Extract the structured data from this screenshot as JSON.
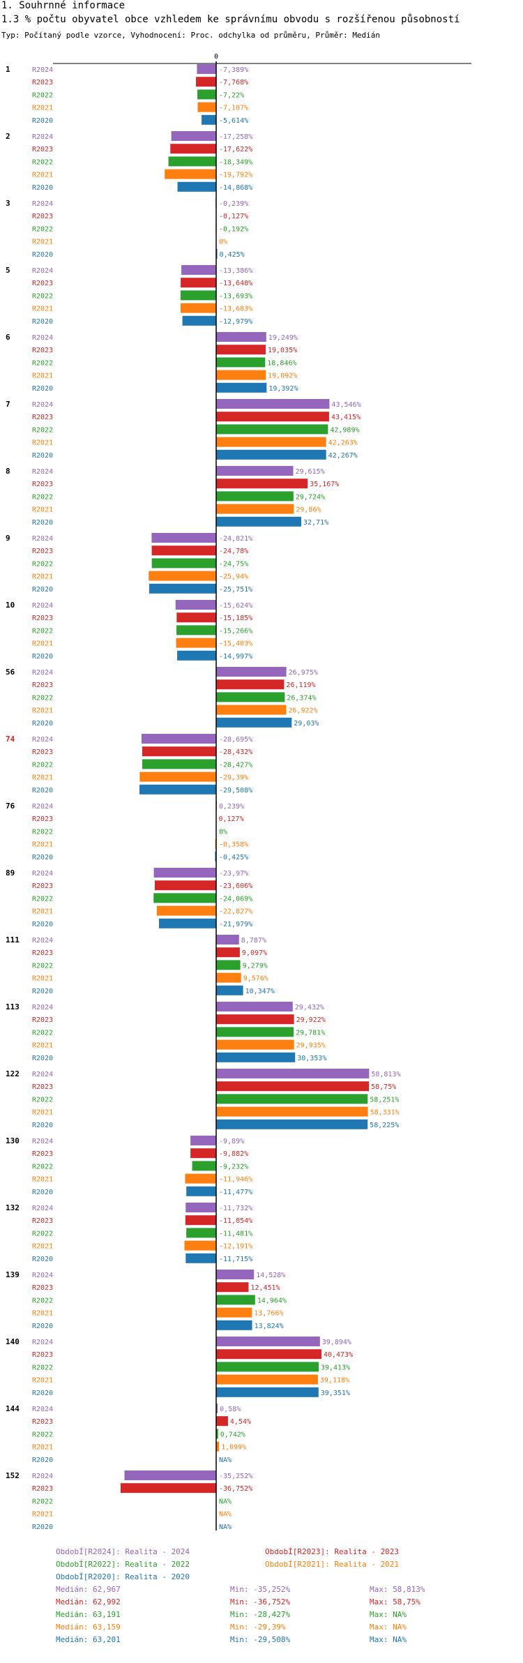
{
  "header": {
    "section": "1. Souhrnné informace",
    "title": "1.3 % počtu obyvatel obce vzhledem ke správnímu obvodu s rozšířenou působností",
    "subtitle": "Typ: Počítaný podle vzorce, Vyhodnocení: Proc. odchylka od průměru, Průměr: Medián"
  },
  "chart_data": {
    "type": "bar",
    "orientation": "horizontal",
    "zero_label": "0",
    "series_names": [
      "R2024",
      "R2023",
      "R2022",
      "R2021",
      "R2020"
    ],
    "series_colors": [
      "#9467bd",
      "#d62728",
      "#2ca02c",
      "#ff7f0e",
      "#1f77b4"
    ],
    "xlim": [
      -40,
      60
    ],
    "groups": [
      {
        "label": "1",
        "highlight": false,
        "values": [
          -7.389,
          -7.768,
          -7.22,
          -7.107,
          -5.614
        ],
        "labels": [
          "-7,389%",
          "-7,768%",
          "-7,22%",
          "-7,107%",
          "-5,614%"
        ]
      },
      {
        "label": "2",
        "highlight": false,
        "values": [
          -17.258,
          -17.622,
          -18.349,
          -19.792,
          -14.868
        ],
        "labels": [
          "-17,258%",
          "-17,622%",
          "-18,349%",
          "-19,792%",
          "-14,868%"
        ]
      },
      {
        "label": "3",
        "highlight": false,
        "values": [
          -0.239,
          -0.127,
          -0.192,
          0,
          0.425
        ],
        "labels": [
          "-0,239%",
          "-0,127%",
          "-0,192%",
          "0%",
          "0,425%"
        ]
      },
      {
        "label": "5",
        "highlight": false,
        "values": [
          -13.386,
          -13.648,
          -13.693,
          -13.683,
          -12.979
        ],
        "labels": [
          "-13,386%",
          "-13,648%",
          "-13,693%",
          "-13,683%",
          "-12,979%"
        ]
      },
      {
        "label": "6",
        "highlight": false,
        "values": [
          19.249,
          19.035,
          18.846,
          19.092,
          19.392
        ],
        "labels": [
          "19,249%",
          "19,035%",
          "18,846%",
          "19,092%",
          "19,392%"
        ]
      },
      {
        "label": "7",
        "highlight": false,
        "values": [
          43.546,
          43.415,
          42.989,
          42.263,
          42.267
        ],
        "labels": [
          "43,546%",
          "43,415%",
          "42,989%",
          "42,263%",
          "42,267%"
        ]
      },
      {
        "label": "8",
        "highlight": false,
        "values": [
          29.615,
          35.167,
          29.724,
          29.86,
          32.71
        ],
        "labels": [
          "29,615%",
          "35,167%",
          "29,724%",
          "29,86%",
          "32,71%"
        ]
      },
      {
        "label": "9",
        "highlight": false,
        "values": [
          -24.821,
          -24.78,
          -24.75,
          -25.94,
          -25.751
        ],
        "labels": [
          "-24,821%",
          "-24,78%",
          "-24,75%",
          "-25,94%",
          "-25,751%"
        ]
      },
      {
        "label": "10",
        "highlight": false,
        "values": [
          -15.624,
          -15.185,
          -15.266,
          -15.403,
          -14.997
        ],
        "labels": [
          "-15,624%",
          "-15,185%",
          "-15,266%",
          "-15,403%",
          "-14,997%"
        ]
      },
      {
        "label": "56",
        "highlight": false,
        "values": [
          26.975,
          26.119,
          26.374,
          26.922,
          29.03
        ],
        "labels": [
          "26,975%",
          "26,119%",
          "26,374%",
          "26,922%",
          "29,03%"
        ]
      },
      {
        "label": "74",
        "highlight": true,
        "values": [
          -28.695,
          -28.432,
          -28.427,
          -29.39,
          -29.508
        ],
        "labels": [
          "-28,695%",
          "-28,432%",
          "-28,427%",
          "-29,39%",
          "-29,508%"
        ]
      },
      {
        "label": "76",
        "highlight": false,
        "values": [
          0.239,
          0.127,
          0,
          -0.358,
          -0.425
        ],
        "labels": [
          "0,239%",
          "0,127%",
          "0%",
          "-0,358%",
          "-0,425%"
        ]
      },
      {
        "label": "89",
        "highlight": false,
        "values": [
          -23.97,
          -23.606,
          -24.069,
          -22.827,
          -21.979
        ],
        "labels": [
          "-23,97%",
          "-23,606%",
          "-24,069%",
          "-22,827%",
          "-21,979%"
        ]
      },
      {
        "label": "111",
        "highlight": false,
        "values": [
          8.787,
          9.097,
          9.279,
          9.576,
          10.347
        ],
        "labels": [
          "8,787%",
          "9,097%",
          "9,279%",
          "9,576%",
          "10,347%"
        ]
      },
      {
        "label": "113",
        "highlight": false,
        "values": [
          29.432,
          29.922,
          29.781,
          29.935,
          30.353
        ],
        "labels": [
          "29,432%",
          "29,922%",
          "29,781%",
          "29,935%",
          "30,353%"
        ]
      },
      {
        "label": "122",
        "highlight": false,
        "values": [
          58.813,
          58.75,
          58.251,
          58.331,
          58.225
        ],
        "labels": [
          "58,813%",
          "58,75%",
          "58,251%",
          "58,331%",
          "58,225%"
        ]
      },
      {
        "label": "130",
        "highlight": false,
        "values": [
          -9.89,
          -9.882,
          -9.232,
          -11.946,
          -11.477
        ],
        "labels": [
          "-9,89%",
          "-9,882%",
          "-9,232%",
          "-11,946%",
          "-11,477%"
        ]
      },
      {
        "label": "132",
        "highlight": false,
        "values": [
          -11.732,
          -11.854,
          -11.481,
          -12.191,
          -11.715
        ],
        "labels": [
          "-11,732%",
          "-11,854%",
          "-11,481%",
          "-12,191%",
          "-11,715%"
        ]
      },
      {
        "label": "139",
        "highlight": false,
        "values": [
          14.528,
          12.451,
          14.964,
          13.766,
          13.824
        ],
        "labels": [
          "14,528%",
          "12,451%",
          "14,964%",
          "13,766%",
          "13,824%"
        ]
      },
      {
        "label": "140",
        "highlight": false,
        "values": [
          39.894,
          40.473,
          39.413,
          39.118,
          39.351
        ],
        "labels": [
          "39,894%",
          "40,473%",
          "39,413%",
          "39,118%",
          "39,351%"
        ]
      },
      {
        "label": "144",
        "highlight": false,
        "values": [
          0.58,
          4.54,
          0.742,
          1.099,
          null
        ],
        "labels": [
          "0,58%",
          "4,54%",
          "0,742%",
          "1,099%",
          "NA%"
        ]
      },
      {
        "label": "152",
        "highlight": false,
        "values": [
          -35.252,
          -36.752,
          null,
          null,
          null
        ],
        "labels": [
          "-35,252%",
          "-36,752%",
          "NA%",
          "NA%",
          "NA%"
        ]
      }
    ]
  },
  "legend": {
    "items": [
      {
        "text": "ObdobÍ[R2024]: Realita - 2024",
        "color": "#9467bd"
      },
      {
        "text": "ObdobÍ[R2023]: Realita - 2023",
        "color": "#d62728"
      },
      {
        "text": "ObdobÍ[R2022]: Realita - 2022",
        "color": "#2ca02c"
      },
      {
        "text": "ObdobÍ[R2021]: Realita - 2021",
        "color": "#ff7f0e"
      },
      {
        "text": "ObdobÍ[R2020]: Realita - 2020",
        "color": "#1f77b4"
      }
    ],
    "stats": [
      {
        "median": "Medián: 62,967",
        "min": "Min: -35,252%",
        "max": "Max: 58,813%",
        "color": "#9467bd"
      },
      {
        "median": "Medián: 62,992",
        "min": "Min: -36,752%",
        "max": "Max: 58,75%",
        "color": "#d62728"
      },
      {
        "median": "Medián: 63,191",
        "min": "Min: -28,427%",
        "max": "Max: NA%",
        "color": "#2ca02c"
      },
      {
        "median": "Medián: 63,159",
        "min": "Min: -29,39%",
        "max": "Max: NA%",
        "color": "#ff7f0e"
      },
      {
        "median": "Medián: 63,201",
        "min": "Min: -29,508%",
        "max": "Max: NA%",
        "color": "#1f77b4"
      }
    ]
  }
}
